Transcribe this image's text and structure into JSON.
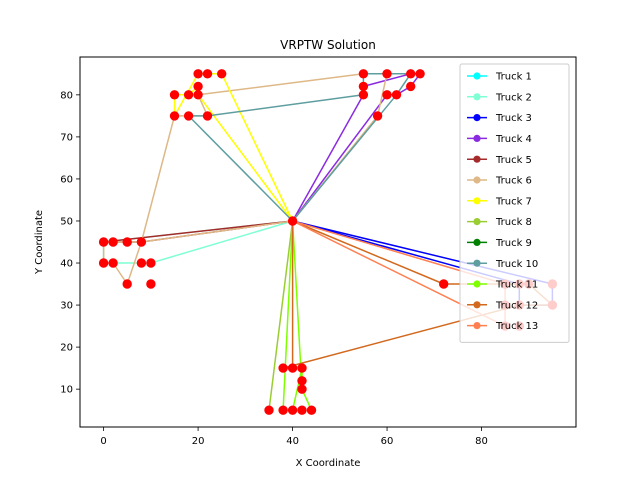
{
  "chart_data": {
    "type": "line",
    "title": "VRPTW Solution",
    "xlabel": "X Coordinate",
    "ylabel": "Y Coordinate",
    "xlim": [
      -5,
      100
    ],
    "ylim": [
      1,
      89
    ],
    "xticks": [
      0,
      20,
      40,
      60,
      80
    ],
    "yticks": [
      10,
      20,
      30,
      40,
      50,
      60,
      70,
      80
    ],
    "legend_position": "upper right",
    "marker_color": "#ff0000",
    "depot": [
      40,
      50
    ],
    "series": [
      {
        "name": "Truck 1",
        "color": "#00ffff",
        "route": [
          [
            40,
            50
          ],
          [
            40,
            50
          ]
        ]
      },
      {
        "name": "Truck 2",
        "color": "#7fffd4",
        "route": [
          [
            40,
            50
          ],
          [
            10,
            40
          ],
          [
            8,
            40
          ],
          [
            2,
            40
          ],
          [
            0,
            40
          ],
          [
            0,
            45
          ],
          [
            40,
            50
          ]
        ]
      },
      {
        "name": "Truck 3",
        "color": "#0000ff",
        "route": [
          [
            40,
            50
          ],
          [
            95,
            35
          ],
          [
            95,
            30
          ],
          [
            88,
            30
          ],
          [
            88,
            35
          ],
          [
            40,
            50
          ]
        ]
      },
      {
        "name": "Truck 4",
        "color": "#8a2be2",
        "route": [
          [
            40,
            50
          ],
          [
            55,
            80
          ],
          [
            55,
            82
          ],
          [
            65,
            85
          ],
          [
            67,
            85
          ],
          [
            65,
            82
          ],
          [
            62,
            80
          ],
          [
            60,
            80
          ],
          [
            40,
            50
          ]
        ]
      },
      {
        "name": "Truck 5",
        "color": "#a52a2a",
        "route": [
          [
            40,
            50
          ],
          [
            8,
            45
          ],
          [
            2,
            45
          ],
          [
            0,
            45
          ],
          [
            40,
            50
          ]
        ]
      },
      {
        "name": "Truck 6",
        "color": "#deb887",
        "route": [
          [
            40,
            50
          ],
          [
            8,
            45
          ],
          [
            5,
            35
          ],
          [
            2,
            40
          ],
          [
            0,
            40
          ],
          [
            0,
            45
          ],
          [
            8,
            45
          ],
          [
            15,
            75
          ],
          [
            22,
            75
          ],
          [
            20,
            80
          ],
          [
            55,
            85
          ],
          [
            60,
            85
          ],
          [
            58,
            75
          ],
          [
            40,
            50
          ]
        ]
      },
      {
        "name": "Truck 7",
        "color": "#ffff00",
        "route": [
          [
            40,
            50
          ],
          [
            25,
            85
          ],
          [
            22,
            85
          ],
          [
            20,
            85
          ],
          [
            15,
            75
          ],
          [
            15,
            80
          ],
          [
            18,
            80
          ],
          [
            20,
            82
          ],
          [
            20,
            80
          ],
          [
            40,
            50
          ]
        ]
      },
      {
        "name": "Truck 8",
        "color": "#9acd32",
        "route": [
          [
            40,
            50
          ],
          [
            35,
            5
          ],
          [
            40,
            50
          ]
        ]
      },
      {
        "name": "Truck 9",
        "color": "#008000",
        "route": [
          [
            40,
            50
          ],
          [
            40,
            50
          ]
        ]
      },
      {
        "name": "Truck 10",
        "color": "#5f9ea0",
        "route": [
          [
            40,
            50
          ],
          [
            18,
            75
          ],
          [
            22,
            75
          ],
          [
            55,
            80
          ],
          [
            55,
            85
          ],
          [
            60,
            85
          ],
          [
            65,
            85
          ],
          [
            62,
            80
          ],
          [
            40,
            50
          ]
        ]
      },
      {
        "name": "Truck 11",
        "color": "#7fff00",
        "route": [
          [
            40,
            50
          ],
          [
            38,
            5
          ],
          [
            40,
            5
          ],
          [
            42,
            15
          ],
          [
            42,
            12
          ],
          [
            42,
            10
          ],
          [
            44,
            5
          ],
          [
            42,
            10
          ],
          [
            40,
            50
          ]
        ]
      },
      {
        "name": "Truck 12",
        "color": "#d2691e",
        "route": [
          [
            40,
            50
          ],
          [
            72,
            35
          ],
          [
            90,
            35
          ],
          [
            95,
            30
          ],
          [
            88,
            30
          ],
          [
            38,
            15
          ],
          [
            40,
            15
          ],
          [
            40,
            50
          ]
        ]
      },
      {
        "name": "Truck 13",
        "color": "#ff7f50",
        "route": [
          [
            40,
            50
          ],
          [
            85,
            25
          ],
          [
            85,
            35
          ],
          [
            40,
            50
          ]
        ]
      }
    ],
    "customer_points": [
      [
        20,
        85
      ],
      [
        22,
        85
      ],
      [
        25,
        85
      ],
      [
        15,
        80
      ],
      [
        18,
        80
      ],
      [
        20,
        80
      ],
      [
        20,
        82
      ],
      [
        15,
        75
      ],
      [
        18,
        75
      ],
      [
        22,
        75
      ],
      [
        55,
        85
      ],
      [
        60,
        85
      ],
      [
        65,
        85
      ],
      [
        67,
        85
      ],
      [
        55,
        82
      ],
      [
        55,
        80
      ],
      [
        60,
        80
      ],
      [
        62,
        80
      ],
      [
        65,
        82
      ],
      [
        58,
        75
      ],
      [
        0,
        45
      ],
      [
        2,
        45
      ],
      [
        5,
        45
      ],
      [
        8,
        45
      ],
      [
        0,
        40
      ],
      [
        2,
        40
      ],
      [
        8,
        40
      ],
      [
        10,
        40
      ],
      [
        5,
        35
      ],
      [
        10,
        35
      ],
      [
        72,
        35
      ],
      [
        85,
        35
      ],
      [
        88,
        35
      ],
      [
        90,
        35
      ],
      [
        95,
        35
      ],
      [
        85,
        30
      ],
      [
        88,
        30
      ],
      [
        95,
        30
      ],
      [
        85,
        25
      ],
      [
        88,
        25
      ],
      [
        38,
        15
      ],
      [
        40,
        15
      ],
      [
        42,
        15
      ],
      [
        42,
        12
      ],
      [
        42,
        10
      ],
      [
        35,
        5
      ],
      [
        38,
        5
      ],
      [
        40,
        5
      ],
      [
        42,
        5
      ],
      [
        44,
        5
      ],
      [
        40,
        50
      ]
    ]
  }
}
